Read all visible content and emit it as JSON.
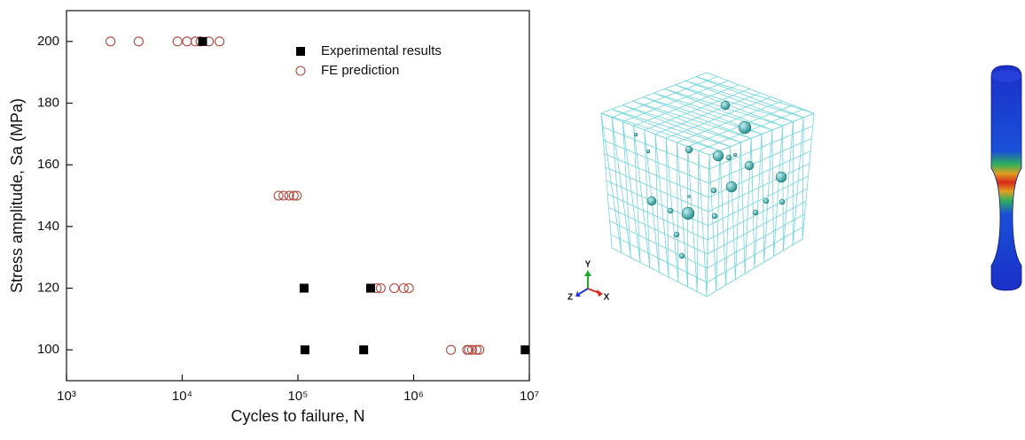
{
  "chart_data": {
    "type": "scatter",
    "xlabel": "Cycles to failure, N",
    "ylabel": "Stress amplitude, Sa (MPa)",
    "xscale": "log",
    "xlim": [
      1000,
      10000000
    ],
    "xticks": [
      {
        "value": 1000,
        "label": "10³"
      },
      {
        "value": 10000,
        "label": "10⁴"
      },
      {
        "value": 100000,
        "label": "10⁵"
      },
      {
        "value": 1000000,
        "label": "10⁶"
      },
      {
        "value": 10000000,
        "label": "10⁷"
      }
    ],
    "ylim": [
      90,
      210
    ],
    "yticks": [
      100,
      120,
      140,
      160,
      180,
      200
    ],
    "legend": "upper right",
    "series": [
      {
        "name": "Experimental results",
        "color": "#000000",
        "marker": "square",
        "x": [
          15000,
          113000,
          425000,
          115000,
          370000,
          9200000
        ],
        "values": [
          200,
          120,
          120,
          100,
          100,
          100
        ]
      },
      {
        "name": "FE prediction",
        "color": "#b5473d",
        "marker": "circle",
        "x": [
          2400,
          4200,
          9100,
          11000,
          13000,
          14400,
          17000,
          21000,
          68000,
          75000,
          84000,
          92000,
          98000,
          480000,
          520000,
          680000,
          820000,
          910000,
          2100000,
          2900000,
          3000000,
          3200000,
          3500000,
          3700000
        ],
        "values": [
          200,
          200,
          200,
          200,
          200,
          200,
          200,
          200,
          150,
          150,
          150,
          150,
          150,
          120,
          120,
          120,
          120,
          120,
          100,
          100,
          100,
          100,
          100,
          100
        ]
      }
    ]
  },
  "triad": {
    "y": "Y",
    "z": "Z",
    "x": "X"
  }
}
